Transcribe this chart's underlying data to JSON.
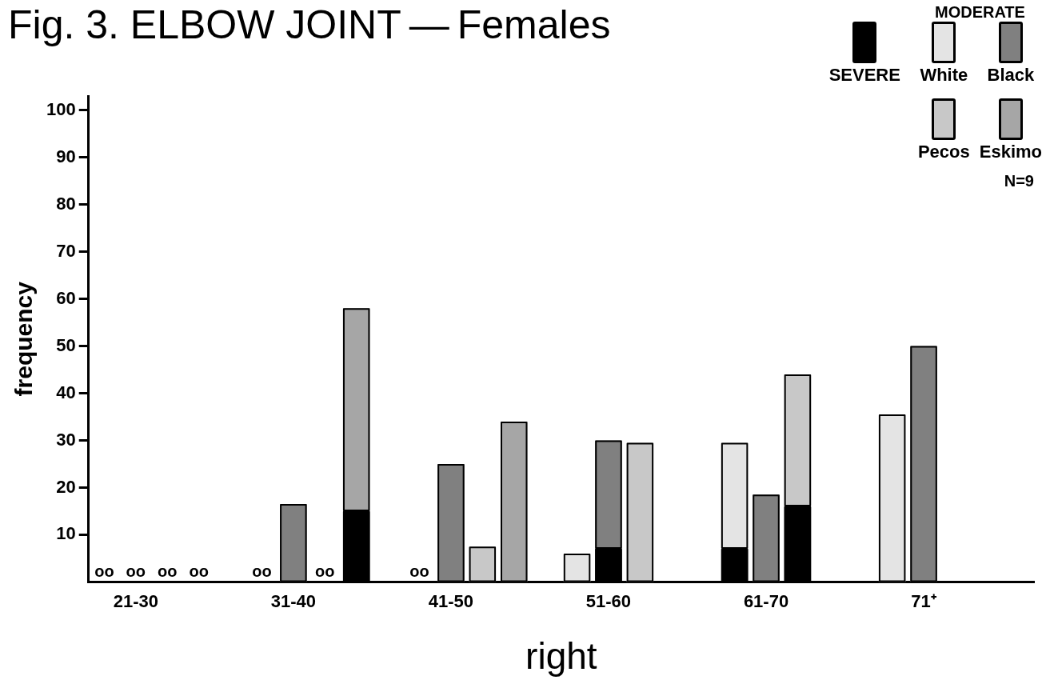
{
  "chart_data": {
    "type": "bar",
    "title": "Fig. 3.  ELBOW JOINT — Females",
    "xlabel": "right",
    "ylabel": "frequency",
    "categories": [
      null,
      "21-30",
      null,
      null,
      null,
      null,
      "31-40",
      null,
      null,
      null,
      null,
      "41-50",
      null,
      null,
      null,
      null,
      "51-60",
      null,
      null,
      null,
      null,
      "61-70",
      null,
      null,
      null,
      null,
      "71⁺",
      null,
      null,
      null
    ],
    "annotations": [
      "N=9"
    ],
    "stacked": true,
    "legend": "top right",
    "legend_title": "MODERATE",
    "ylim": [
      0,
      103
    ],
    "yticks": [
      10,
      20,
      30,
      40,
      50,
      60,
      70,
      80,
      90,
      100
    ],
    "series": [
      {
        "name": "SEVERE",
        "color": "#000000",
        "values": [
          null,
          null,
          null,
          null,
          null,
          null,
          null,
          null,
          15,
          null,
          null,
          null,
          null,
          null,
          null,
          null,
          7,
          null,
          null,
          null,
          7,
          null,
          16,
          null,
          null,
          null,
          null,
          null,
          null,
          null
        ]
      },
      {
        "name": "White",
        "color": "#e4e4e4",
        "values": [
          0,
          null,
          null,
          null,
          null,
          0,
          null,
          null,
          null,
          null,
          0,
          null,
          null,
          null,
          null,
          6,
          null,
          null,
          null,
          null,
          22.5,
          null,
          null,
          null,
          null,
          35.5,
          null,
          null,
          null,
          null
        ],
        "value_labels": [
          "oo",
          null,
          null,
          null,
          null,
          "oo",
          null,
          null,
          null,
          null,
          "oo",
          null,
          null,
          null,
          null,
          null,
          null,
          null,
          null,
          null,
          null,
          null,
          null,
          null,
          null,
          null,
          null,
          null,
          null,
          null
        ]
      },
      {
        "name": "Black",
        "color": "#808080",
        "values": [
          null,
          0,
          null,
          null,
          null,
          null,
          16.5,
          null,
          null,
          null,
          null,
          25,
          null,
          null,
          null,
          null,
          23,
          null,
          null,
          null,
          null,
          18.5,
          null,
          null,
          null,
          null,
          50,
          null,
          null,
          null
        ],
        "value_labels": [
          null,
          "oo",
          null,
          null,
          null,
          null,
          null,
          null,
          null,
          null,
          null,
          null,
          null,
          null,
          null,
          null,
          null,
          null,
          null,
          null,
          null,
          null,
          null,
          null,
          null,
          null,
          null,
          null,
          null,
          null
        ]
      },
      {
        "name": "Pecos",
        "color": "#c8c8c8",
        "values": [
          null,
          null,
          0,
          null,
          null,
          null,
          null,
          0,
          null,
          null,
          null,
          null,
          7.5,
          null,
          null,
          null,
          null,
          29.5,
          null,
          null,
          null,
          null,
          28,
          null,
          null,
          null,
          null,
          null,
          null,
          null
        ],
        "value_labels": [
          null,
          null,
          "oo",
          null,
          null,
          null,
          null,
          "oo",
          null,
          null,
          null,
          null,
          null,
          null,
          null,
          null,
          null,
          null,
          null,
          null,
          null,
          null,
          null,
          null,
          null,
          null,
          null,
          null,
          null,
          null
        ]
      },
      {
        "name": "Eskimo",
        "color": "#a6a6a6",
        "values": [
          null,
          null,
          null,
          0,
          null,
          null,
          null,
          null,
          43,
          null,
          null,
          null,
          null,
          34,
          null,
          null,
          null,
          null,
          null,
          null,
          null,
          null,
          null,
          null,
          null,
          null,
          null,
          null,
          null,
          null
        ],
        "value_labels": [
          null,
          null,
          null,
          "oo",
          null,
          null,
          null,
          null,
          null,
          null,
          null,
          null,
          null,
          null,
          null,
          null,
          null,
          null,
          null,
          null,
          null,
          null,
          null,
          null,
          null,
          null,
          null,
          null,
          null,
          null
        ]
      }
    ]
  }
}
